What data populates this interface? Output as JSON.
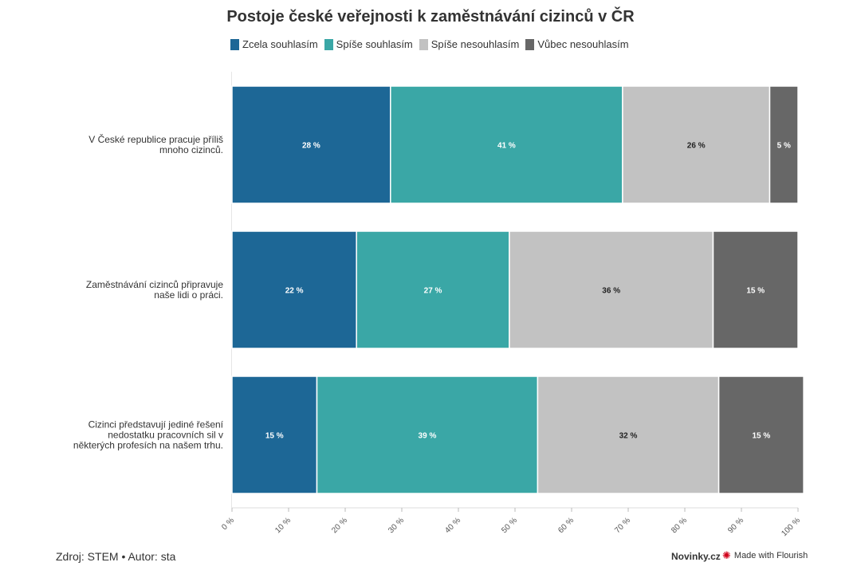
{
  "chart_data": {
    "type": "bar",
    "orientation": "horizontal",
    "stacked": true,
    "title": "Postoje české veřejnosti k zaměstnávání cizinců v ČR",
    "categories": [
      [
        "V České republice pracuje příliš",
        "mnoho cizinců."
      ],
      [
        "Zaměstnávání cizinců připravuje",
        "naše lidi o práci."
      ],
      [
        "Cizinci představují jediné řešení",
        "nedostatku pracovních sil v",
        "některých profesích na našem trhu."
      ]
    ],
    "series": [
      {
        "name": "Zcela souhlasím",
        "color": "#1d6796",
        "label_color": "#ffffff",
        "values": [
          28,
          22,
          15
        ]
      },
      {
        "name": "Spíše souhlasím",
        "color": "#3aa7a6",
        "label_color": "#ffffff",
        "values": [
          41,
          27,
          39
        ]
      },
      {
        "name": "Spíše nesouhlasím",
        "color": "#c2c2c2",
        "label_color": "#222222",
        "values": [
          26,
          36,
          32
        ]
      },
      {
        "name": "Vůbec nesouhlasím",
        "color": "#676767",
        "label_color": "#ffffff",
        "values": [
          5,
          15,
          15
        ]
      }
    ],
    "value_suffix": " %",
    "xlim": [
      0,
      100
    ],
    "xticks": [
      "0 %",
      "10 %",
      "20 %",
      "30 %",
      "40 %",
      "50 %",
      "60 %",
      "70 %",
      "80 %",
      "90 %",
      "100 %"
    ],
    "legend_position": "top-left"
  },
  "footer": {
    "source": "Zdroj: STEM • Autor: sta",
    "brand": "Novinky.cz",
    "flourish": "Made with Flourish"
  }
}
